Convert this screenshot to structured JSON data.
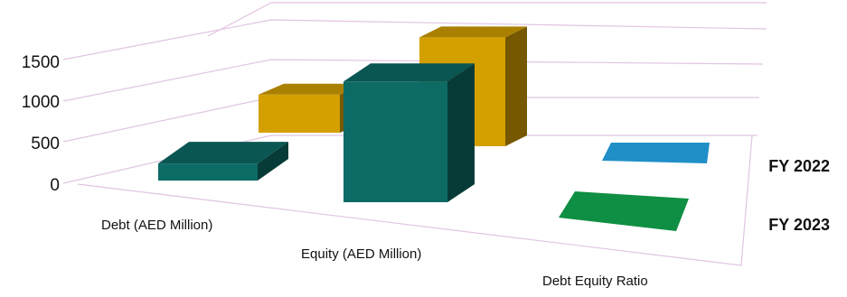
{
  "chart_data": {
    "type": "bar",
    "title": "",
    "xlabel": "",
    "ylabel": "",
    "categories": [
      "Debt (AED Million)",
      "Equity (AED Million)",
      "Debt Equity Ratio"
    ],
    "series": [
      {
        "name": "FY 2022",
        "values": [
          330,
          1450,
          0.3
        ],
        "colors": [
          "#d4a000",
          "#d4a000",
          "#1f8fc8"
        ]
      },
      {
        "name": "FY 2023",
        "values": [
          420,
          1320,
          0.3
        ],
        "colors": [
          "#0d6b66",
          "#0d6b66",
          "#0f8f43"
        ]
      }
    ],
    "yticks": [
      "0",
      "500",
      "1000",
      "1500"
    ],
    "ylim": [
      0,
      1500
    ],
    "grid": true,
    "legend": "right, series names as depth-axis labels",
    "style": {
      "gridline_color": "#e2c4e2"
    }
  }
}
